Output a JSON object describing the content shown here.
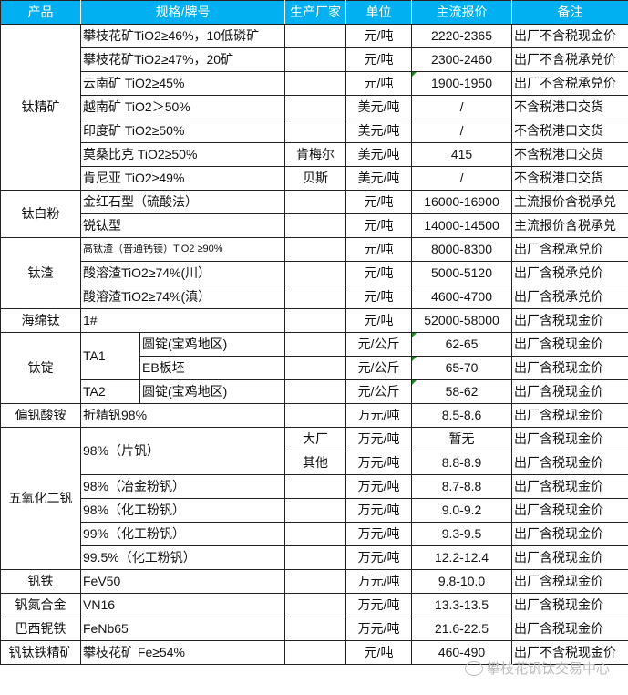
{
  "header": {
    "product": "产品",
    "spec": "规格/牌号",
    "maker": "生产厂家",
    "unit": "单位",
    "price": "主流报价",
    "note": "备注"
  },
  "colors": {
    "header_bg": "#00B0F0",
    "header_text": "#ffffff",
    "cell_marker": "#1a8a1a"
  },
  "groups": [
    {
      "product": "钛精矿",
      "rows": [
        {
          "spec": "攀枝花矿TiO2≥46%，10低磷矿",
          "maker": "",
          "unit": "元/吨",
          "price": "2220-2365",
          "note": "出厂不含税现金价"
        },
        {
          "spec": "攀枝花矿TiO2≥47%，20矿",
          "maker": "",
          "unit": "元/吨",
          "price": "2300-2460",
          "note": "出厂不含税承兑价"
        },
        {
          "spec": "云南矿 TiO2≥45%",
          "maker": "",
          "unit": "元/吨",
          "price": "1900-1950",
          "note": "出厂不含税承兑价",
          "marker": true
        },
        {
          "spec": "越南矿 TiO2＞50%",
          "maker": "",
          "unit": "美元/吨",
          "price": "/",
          "note": "不含税港口交货"
        },
        {
          "spec": "印度矿 TiO2≥50%",
          "maker": "",
          "unit": "美元/吨",
          "price": "/",
          "note": "不含税港口交货"
        },
        {
          "spec": "莫桑比克 TiO2≥50%",
          "maker": "肯梅尔",
          "unit": "美元/吨",
          "price": "415",
          "note": "不含税港口交货"
        },
        {
          "spec": "肯尼亚 TiO2≥49%",
          "maker": "贝斯",
          "unit": "美元/吨",
          "price": "/",
          "note": "不含税港口交货"
        }
      ]
    },
    {
      "product": "钛白粉",
      "rows": [
        {
          "spec": "金红石型（硫酸法）",
          "maker": "",
          "unit": "元/吨",
          "price": "16000-16900",
          "note": "主流报价含税承兑"
        },
        {
          "spec": "锐钛型",
          "maker": "",
          "unit": "元/吨",
          "price": "14000-14500",
          "note": "主流报价含税承兑"
        }
      ]
    },
    {
      "product": "钛渣",
      "rows": [
        {
          "spec": "高钛渣（普通钙镁）TiO2 ≥90%",
          "small": true,
          "maker": "",
          "unit": "元/吨",
          "price": "8000-8300",
          "note": "出厂含税承兑价"
        },
        {
          "spec": "酸溶渣TiO2≥74%(川）",
          "maker": "",
          "unit": "元/吨",
          "price": "5000-5120",
          "note": "出厂含税承兑价"
        },
        {
          "spec": "酸溶渣TiO2≥74%(滇）",
          "maker": "",
          "unit": "元/吨",
          "price": "4600-4700",
          "note": "出厂含税承兑价"
        }
      ]
    },
    {
      "product": "海绵钛",
      "rows": [
        {
          "spec": "1#",
          "maker": "",
          "unit": "元/吨",
          "price": "52000-58000",
          "note": "出厂含税现金价"
        }
      ]
    },
    {
      "product": "钛锭",
      "rows": [
        {
          "grade": "TA1",
          "form": "圆锭(宝鸡地区)",
          "maker": "",
          "unit": "元/公斤",
          "price": "62-65",
          "note": "出厂含税现金价",
          "marker": true
        },
        {
          "grade": "TA1",
          "form": "EB板坯",
          "maker": "",
          "unit": "元/公斤",
          "price": "65-70",
          "note": "出厂含税现金价",
          "marker": true
        },
        {
          "grade": "TA2",
          "form": "圆锭(宝鸡地区)",
          "maker": "",
          "unit": "元/公斤",
          "price": "58-62",
          "note": "出厂含税现金价",
          "marker": true
        }
      ]
    },
    {
      "product": "偏钒酸铵",
      "rows": [
        {
          "spec": "折精钒98%",
          "maker": "",
          "unit": "万元/吨",
          "price": "8.5-8.6",
          "note": "出厂含税现金价"
        }
      ]
    },
    {
      "product": "五氧化二钒",
      "rows": [
        {
          "spec": "98%（片钒）",
          "maker": "大厂",
          "unit": "万元/吨",
          "price": "暂无",
          "note": "出厂含税现金价"
        },
        {
          "spec": "98%（片钒）",
          "maker": "其他",
          "unit": "万元/吨",
          "price": "8.8-8.9",
          "note": "出厂含税现金价"
        },
        {
          "spec": "98%（冶金粉钒）",
          "maker": "",
          "unit": "万元/吨",
          "price": "8.7-8.8",
          "note": "出厂含税现金价"
        },
        {
          "spec": "98%（化工粉钒）",
          "maker": "",
          "unit": "万元/吨",
          "price": "9.0-9.2",
          "note": "出厂含税现金价"
        },
        {
          "spec": "99%（化工粉钒）",
          "maker": "",
          "unit": "万元/吨",
          "price": "9.3-9.5",
          "note": "出厂含税现金价"
        },
        {
          "spec": "99.5%（化工粉钒）",
          "maker": "",
          "unit": "万元/吨",
          "price": "12.2-12.4",
          "note": "出厂含税现金价"
        }
      ]
    },
    {
      "product": "钒铁",
      "rows": [
        {
          "spec": "FeV50",
          "maker": "",
          "unit": "万元/吨",
          "price": "9.8-10.0",
          "note": "出厂含税现金价"
        }
      ]
    },
    {
      "product": "钒氮合金",
      "rows": [
        {
          "spec": "VN16",
          "maker": "",
          "unit": "万元/吨",
          "price": "13.3-13.5",
          "note": "出厂含税现金价"
        }
      ]
    },
    {
      "product": "巴西铌铁",
      "rows": [
        {
          "spec": "FeNb65",
          "maker": "",
          "unit": "万元/吨",
          "price": "21.6-22.5",
          "note": "出厂含税现金价"
        }
      ]
    },
    {
      "product": "钒钛铁精矿",
      "rows": [
        {
          "spec": "攀枝花矿 Fe≥54%",
          "maker": "",
          "unit": "元/吨",
          "price": "460-490",
          "note": "出厂不含税现金价"
        }
      ]
    }
  ],
  "watermark": {
    "text": "攀枝花钒钛交易中心",
    "icon": "wechat-icon"
  }
}
